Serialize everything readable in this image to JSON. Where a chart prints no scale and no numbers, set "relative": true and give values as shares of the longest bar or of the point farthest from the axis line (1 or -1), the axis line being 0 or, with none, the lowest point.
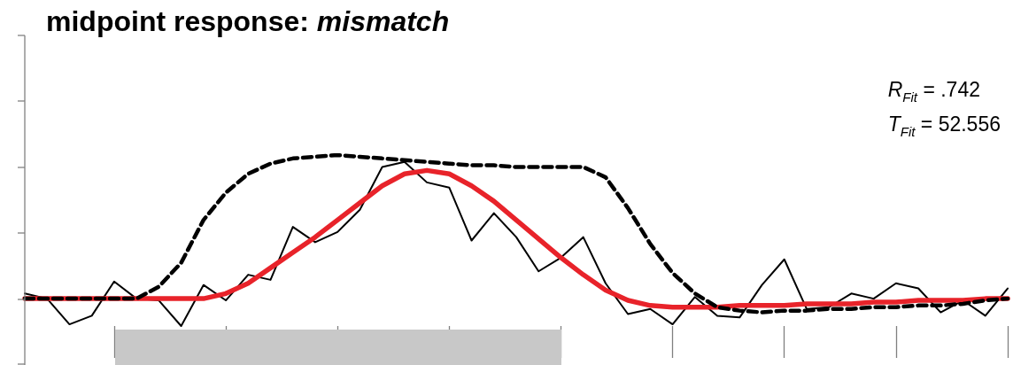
{
  "chart_data": {
    "type": "line",
    "title": "midpoint response: mismatch",
    "relative": true,
    "marker": "none",
    "grid": false,
    "annotations": [
      "R$_{Fit}$ = .742",
      "T$_{Fit}$ = 52.556"
    ],
    "categories": [
      null,
      null,
      null,
      null,
      null,
      null,
      null,
      null,
      null,
      null,
      null,
      null,
      null,
      null,
      null,
      null,
      null,
      null,
      null,
      null,
      null,
      null,
      null,
      null,
      null,
      null,
      null,
      null,
      null,
      null,
      null,
      null,
      null,
      null,
      null,
      null,
      null,
      null,
      null,
      null,
      null,
      null,
      null,
      null,
      null
    ],
    "series": [
      {
        "color": "#000000",
        "line_style": "solid",
        "values": [
          0.19,
          0.16,
          0.01,
          0.06,
          0.26,
          0.16,
          0.15,
          0,
          0.24,
          0.15,
          0.3,
          0.27,
          0.58,
          0.49,
          0.55,
          0.68,
          0.93,
          0.96,
          0.84,
          0.81,
          0.5,
          0.66,
          0.52,
          0.32,
          0.4,
          0.52,
          0.25,
          0.07,
          0.1,
          0.01,
          0.17,
          0.06,
          0.05,
          0.24,
          0.39,
          0.1,
          0.11,
          0.19,
          0.16,
          0.25,
          0.22,
          0.08,
          0.15,
          0.06,
          0.22
        ]
      },
      {
        "color": "#000000",
        "line_style": "dashed",
        "values": [
          0.16,
          0.16,
          0.16,
          0.16,
          0.16,
          0.16,
          0.23,
          0.37,
          0.62,
          0.78,
          0.89,
          0.95,
          0.98,
          0.99,
          1,
          0.99,
          0.98,
          0.97,
          0.96,
          0.95,
          0.94,
          0.94,
          0.93,
          0.93,
          0.93,
          0.93,
          0.87,
          0.69,
          0.48,
          0.31,
          0.19,
          0.11,
          0.09,
          0.08,
          0.09,
          0.09,
          0.1,
          0.1,
          0.11,
          0.11,
          0.12,
          0.12,
          0.13,
          0.15,
          0.16
        ]
      },
      {
        "color": "#e8232a",
        "line_style": "solid",
        "values": [
          0.16,
          0.16,
          0.16,
          0.16,
          0.16,
          0.16,
          0.16,
          0.16,
          0.16,
          0.19,
          0.25,
          0.34,
          0.43,
          0.52,
          0.62,
          0.72,
          0.82,
          0.89,
          0.91,
          0.89,
          0.82,
          0.73,
          0.62,
          0.51,
          0.4,
          0.3,
          0.21,
          0.15,
          0.12,
          0.11,
          0.11,
          0.11,
          0.12,
          0.12,
          0.12,
          0.13,
          0.13,
          0.13,
          0.14,
          0.14,
          0.15,
          0.15,
          0.15,
          0.16,
          0.16
        ]
      }
    ]
  }
}
